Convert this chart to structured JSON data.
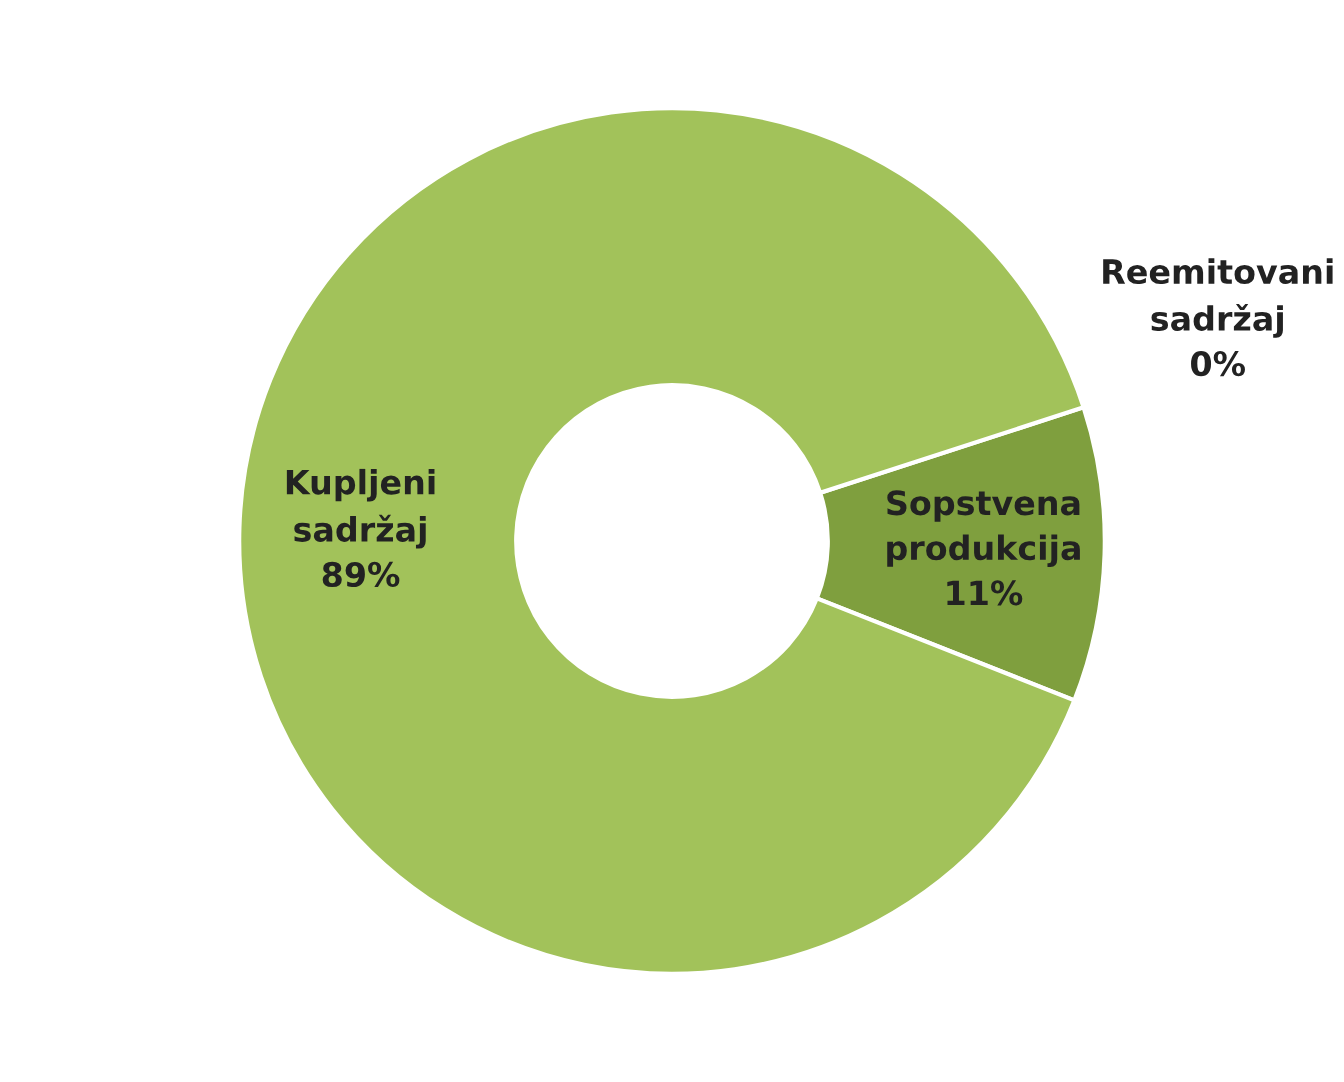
{
  "chart_data": {
    "type": "donut",
    "categories": [
      "Reemitovani sadržaj",
      "Sopstvena produkcija",
      "Kupljeni sadržaj"
    ],
    "values": [
      0,
      11,
      89
    ],
    "colors": [
      "#dfe9c8",
      "#7f9f3e",
      "#a2c25a"
    ],
    "value_labels": [
      "0%",
      "11%",
      "89%"
    ]
  }
}
